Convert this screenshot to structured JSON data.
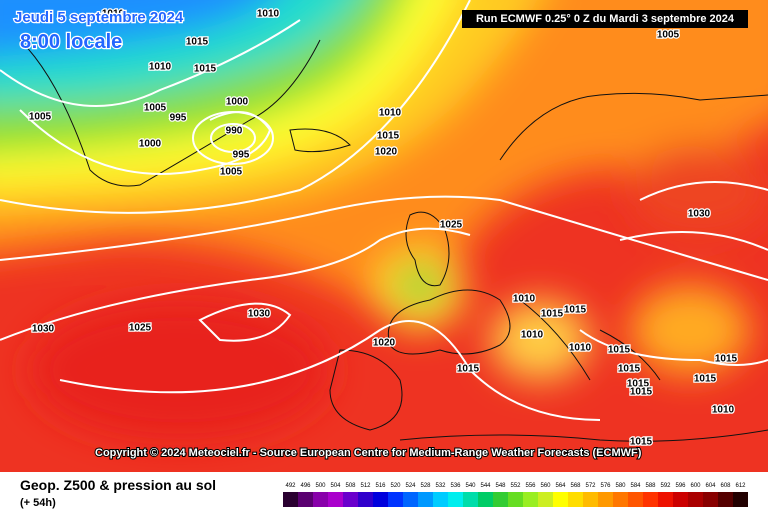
{
  "header": {
    "date": "Jeudi 5 septembre 2024",
    "time": "8:00 locale",
    "run": "Run ECMWF 0.25° 0 Z du Mardi 3 septembre 2024"
  },
  "copyright": "Copyright © 2024 Meteociel.fr - Source European Centre for Medium-Range Weather Forecasts (ECMWF)",
  "legend": {
    "title": "Geop. Z500 & pression au sol",
    "lead": "(+ 54h)",
    "scale": [
      492,
      496,
      500,
      504,
      508,
      512,
      516,
      520,
      524,
      528,
      532,
      536,
      540,
      544,
      548,
      552,
      556,
      560,
      564,
      568,
      572,
      576,
      580,
      584,
      588,
      592,
      596,
      600,
      604,
      608,
      612
    ],
    "colors": [
      "#2a0030",
      "#5a0070",
      "#8800aa",
      "#aa00cc",
      "#6a00cc",
      "#3000cc",
      "#0000dd",
      "#0033ff",
      "#0066ff",
      "#0099ff",
      "#00ccff",
      "#00eeee",
      "#00ddaa",
      "#00cc66",
      "#33cc33",
      "#66dd22",
      "#99ee22",
      "#ccee22",
      "#ffff00",
      "#ffdd00",
      "#ffbb00",
      "#ff9900",
      "#ff7700",
      "#ff5500",
      "#ff3300",
      "#ee1100",
      "#cc0000",
      "#aa0000",
      "#880000",
      "#550000",
      "#220000"
    ]
  },
  "isobar_labels": [
    "1010",
    "1010",
    "1015",
    "1010",
    "1015",
    "1005",
    "1000",
    "995",
    "990",
    "995",
    "1000",
    "1005",
    "1005",
    "1010",
    "1015",
    "1020",
    "1025",
    "1030",
    "1005",
    "1030",
    "1025",
    "1030",
    "1020",
    "1015",
    "1010",
    "1015",
    "1015",
    "1010",
    "1010",
    "1015",
    "1015",
    "1015",
    "1015",
    "1015",
    "1015",
    "1010",
    "1015"
  ]
}
